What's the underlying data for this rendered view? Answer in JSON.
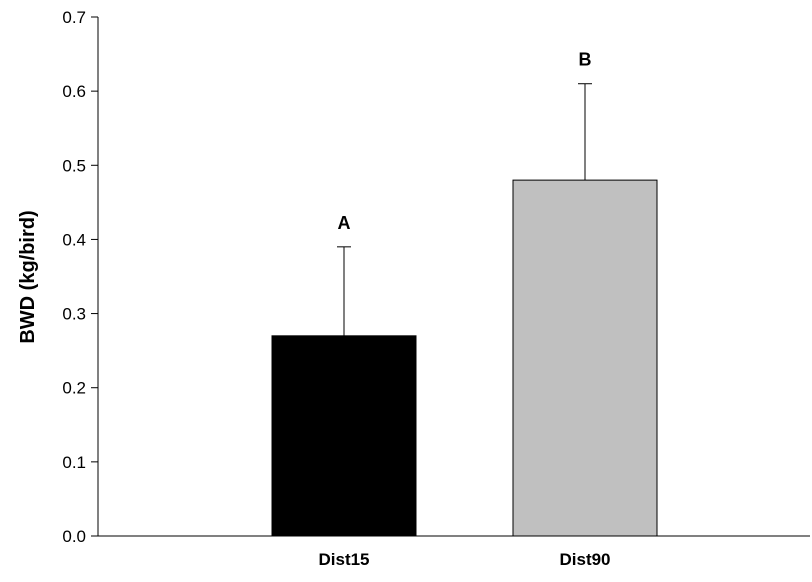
{
  "chart_data": {
    "type": "bar",
    "title": "",
    "xlabel": "",
    "ylabel": "BWD (kg/bird)",
    "ylim": [
      0,
      0.7
    ],
    "yticks": [
      0.0,
      0.1,
      0.2,
      0.3,
      0.4,
      0.5,
      0.6,
      0.7
    ],
    "ytick_labels": [
      "0.0",
      "0.1",
      "0.2",
      "0.3",
      "0.4",
      "0.5",
      "0.6",
      "0.7"
    ],
    "grid": false,
    "categories": [
      "Dist15",
      "Dist90"
    ],
    "values": [
      0.27,
      0.48
    ],
    "error_upper": [
      0.12,
      0.13
    ],
    "significance_labels": [
      "A",
      "B"
    ],
    "bar_colors": [
      "#000000",
      "#c0c0c0"
    ]
  }
}
